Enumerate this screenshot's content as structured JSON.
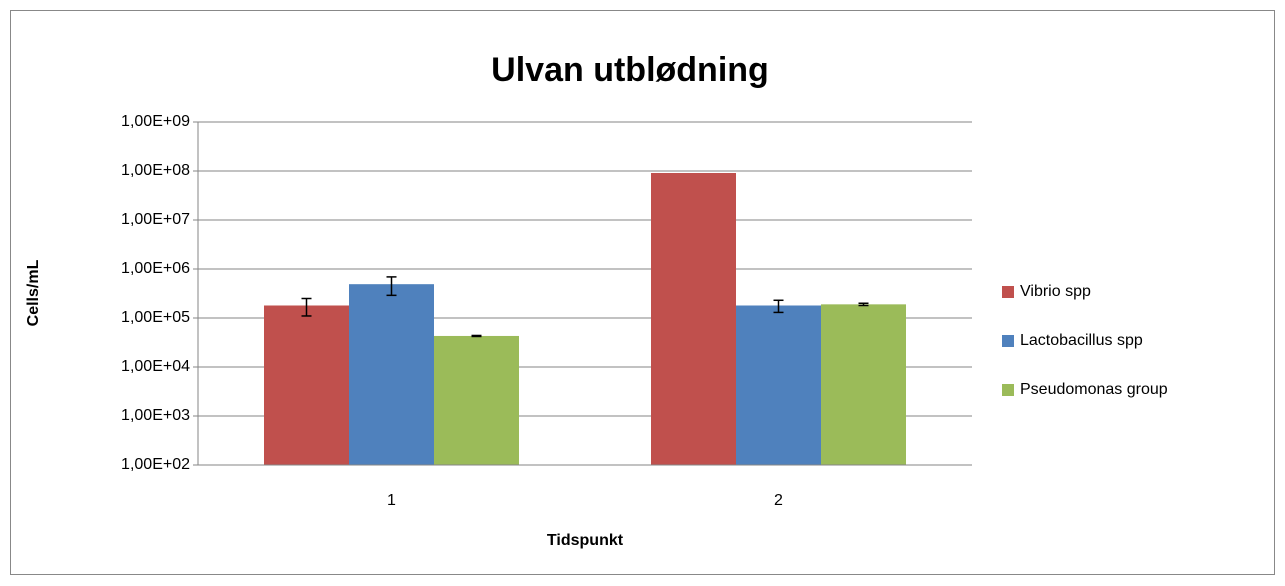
{
  "chart_data": {
    "type": "bar",
    "title": "Ulvan utblødning",
    "x_label": "Tidspunkt",
    "y_label": "Cells/mL",
    "categories": [
      "1",
      "2"
    ],
    "series": [
      {
        "name": "Vibrio spp",
        "color": "#c0504d",
        "values": [
          180000,
          91000000
        ],
        "errors": [
          70000,
          null
        ]
      },
      {
        "name": "Lactobacillus spp",
        "color": "#4f81bd",
        "values": [
          490000,
          180000
        ],
        "errors": [
          200000,
          50000
        ]
      },
      {
        "name": "Pseudomonas group",
        "color": "#9bbb59",
        "values": [
          43000,
          190000
        ],
        "errors": [
          1000,
          10000
        ]
      }
    ],
    "yscale": "log",
    "ylim": [
      100,
      1000000000
    ],
    "yticks": [
      {
        "value": 100,
        "label": "1,00E+02"
      },
      {
        "value": 1000,
        "label": "1,00E+03"
      },
      {
        "value": 10000,
        "label": "1,00E+04"
      },
      {
        "value": 100000,
        "label": "1,00E+05"
      },
      {
        "value": 1000000,
        "label": "1,00E+06"
      },
      {
        "value": 10000000,
        "label": "1,00E+07"
      },
      {
        "value": 100000000,
        "label": "1,00E+08"
      },
      {
        "value": 1000000000,
        "label": "1,00E+09"
      }
    ],
    "grid": true,
    "legend": "right"
  }
}
